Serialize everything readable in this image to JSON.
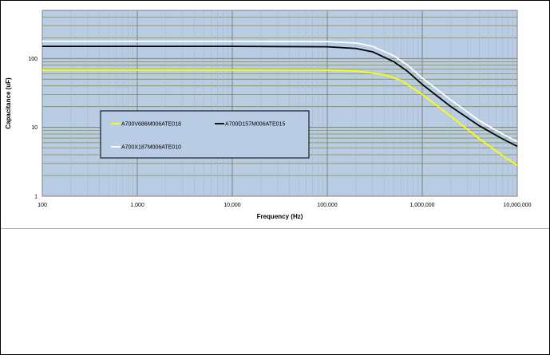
{
  "chart_data": {
    "type": "line",
    "title": "",
    "xlabel": "Frequency (Hz)",
    "ylabel": "Capacitance (uF)",
    "x_scale": "log",
    "y_scale": "log",
    "xlim": [
      100,
      10000000
    ],
    "ylim": [
      1,
      500
    ],
    "x_tick_values": [
      100,
      1000,
      10000,
      100000,
      1000000,
      10000000
    ],
    "x_tick_labels": [
      "100",
      "1,000",
      "10,000",
      "100,000",
      "1,000,000",
      "10,000,000"
    ],
    "y_tick_values": [
      1,
      10,
      100
    ],
    "y_tick_labels": [
      "1",
      "10",
      "100"
    ],
    "grid": true,
    "legend": "center-left",
    "plot_background": "#b8cce4",
    "series": [
      {
        "name": "A700V686M006ATE018",
        "color": "#ffff00",
        "x": [
          100,
          10000,
          100000,
          200000,
          400000,
          600000,
          1000000,
          2000000,
          4000000,
          7000000,
          10000000
        ],
        "y": [
          68,
          68,
          67.5,
          66,
          58,
          48,
          30,
          14.5,
          6.8,
          3.9,
          2.8
        ]
      },
      {
        "name": "A700D157M006ATE015",
        "color": "#000000",
        "x": [
          100,
          10000,
          100000,
          200000,
          300000,
          500000,
          700000,
          1000000,
          2000000,
          4000000,
          7000000,
          10000000
        ],
        "y": [
          150,
          150,
          148,
          140,
          125,
          90,
          65,
          42,
          20,
          10.5,
          6.8,
          5.3
        ]
      },
      {
        "name": "A700X187M006ATE010",
        "color": "#ffffff",
        "x": [
          100,
          10000,
          100000,
          200000,
          300000,
          500000,
          700000,
          1000000,
          2000000,
          4000000,
          7000000,
          10000000
        ],
        "y": [
          178,
          178,
          176,
          168,
          150,
          110,
          80,
          52,
          25,
          12.5,
          8.0,
          6.2
        ]
      }
    ]
  }
}
